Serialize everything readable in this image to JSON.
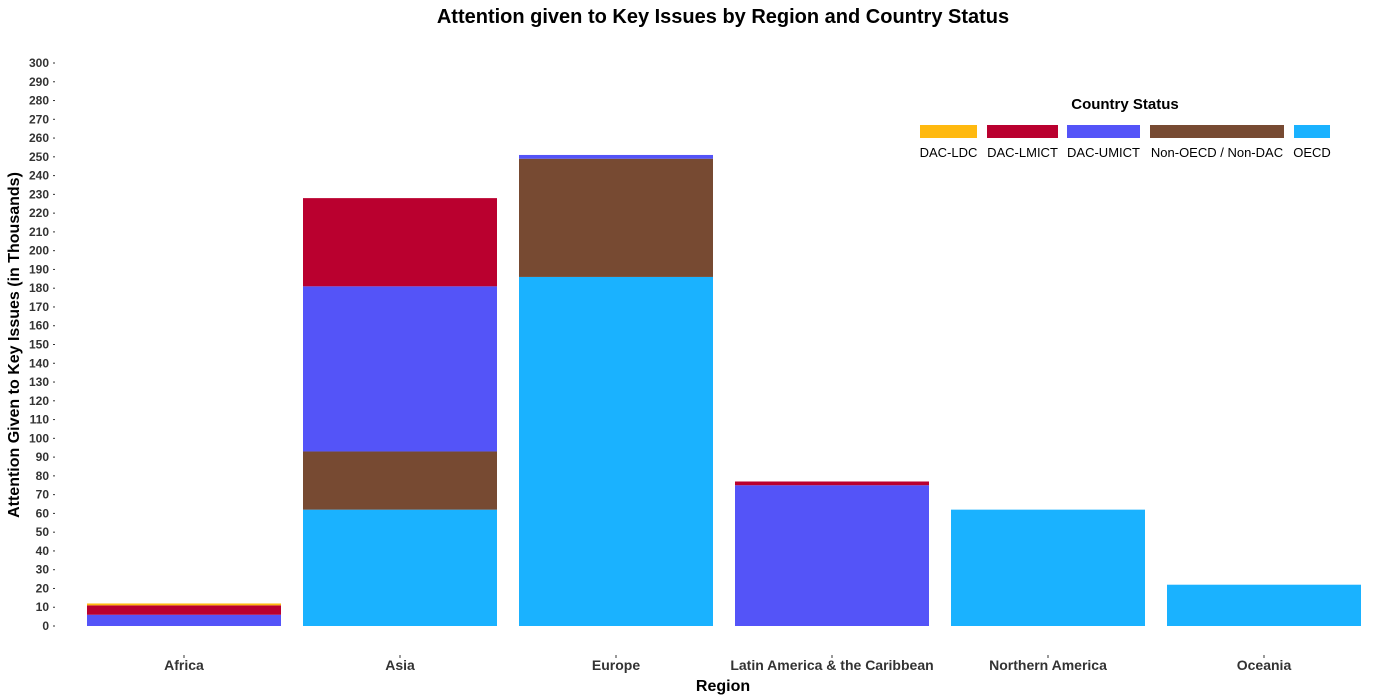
{
  "chart_data": {
    "type": "bar",
    "stacked": true,
    "title": "Attention given to Key Issues by Region and Country Status",
    "xlabel": "Region",
    "ylabel": "Attention Given to Key Issues (in Thousands)",
    "ylim": [
      0,
      300
    ],
    "ytick_step": 10,
    "grid": false,
    "legend": {
      "title": "Country Status",
      "position": "top-right"
    },
    "categories": [
      "Africa",
      "Asia",
      "Europe",
      "Latin America & the Caribbean",
      "Northern America",
      "Oceania"
    ],
    "series": [
      {
        "name": "DAC-LDC",
        "color": "#FFB90F",
        "values": [
          1,
          0,
          0,
          0,
          0,
          0
        ]
      },
      {
        "name": "DAC-LMICT",
        "color": "#BA002F",
        "values": [
          5,
          47,
          0,
          2,
          0,
          0
        ]
      },
      {
        "name": "DAC-UMICT",
        "color": "#5454F8",
        "values": [
          6,
          88,
          2,
          75,
          0,
          0
        ]
      },
      {
        "name": "Non-OECD / Non-DAC",
        "color": "#774A32",
        "values": [
          0,
          31,
          63,
          0,
          0,
          0
        ]
      },
      {
        "name": "OECD",
        "color": "#1AB2FF",
        "values": [
          0,
          62,
          186,
          0,
          62,
          22
        ]
      }
    ]
  }
}
